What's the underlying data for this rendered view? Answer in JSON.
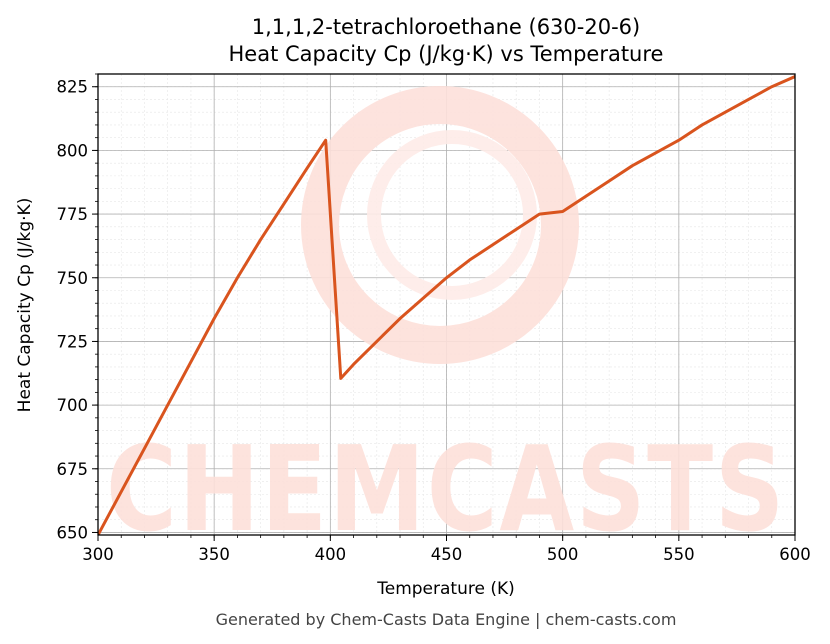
{
  "chart_data": {
    "type": "line",
    "title_line1": "1,1,1,2-tetrachloroethane (630-20-6)",
    "title_line2": "Heat Capacity Cp (J/kg·K) vs Temperature",
    "xlabel": "Temperature (K)",
    "ylabel": "Heat Capacity Cp (J/kg·K)",
    "xlim": [
      300,
      600
    ],
    "ylim": [
      649,
      830
    ],
    "x_ticks": [
      300,
      350,
      400,
      450,
      500,
      550,
      600
    ],
    "y_ticks": [
      650,
      675,
      700,
      725,
      750,
      775,
      800,
      825
    ],
    "grid": true,
    "series": [
      {
        "color": "#d9541e",
        "points": [
          [
            300,
            649
          ],
          [
            310,
            666
          ],
          [
            320,
            683
          ],
          [
            330,
            700
          ],
          [
            340,
            717
          ],
          [
            350,
            734
          ],
          [
            360,
            750
          ],
          [
            370,
            765
          ],
          [
            380,
            779
          ],
          [
            390,
            793
          ],
          [
            398,
            804
          ],
          [
            404.5,
            710.5
          ],
          [
            410,
            716
          ],
          [
            420,
            725
          ],
          [
            430,
            734
          ],
          [
            440,
            742
          ],
          [
            450,
            750
          ],
          [
            460,
            757
          ],
          [
            470,
            763
          ],
          [
            480,
            769
          ],
          [
            490,
            775
          ],
          [
            500,
            776
          ],
          [
            510,
            782
          ],
          [
            520,
            788
          ],
          [
            530,
            794
          ],
          [
            540,
            799
          ],
          [
            550,
            804
          ],
          [
            560,
            810
          ],
          [
            570,
            815
          ],
          [
            580,
            820
          ],
          [
            590,
            825
          ],
          [
            600,
            829
          ]
        ]
      }
    ]
  },
  "watermark": {
    "text": "CHEMCASTS",
    "color": "#fde0da"
  },
  "footer": "Generated by Chem-Casts Data Engine | chem-casts.com"
}
